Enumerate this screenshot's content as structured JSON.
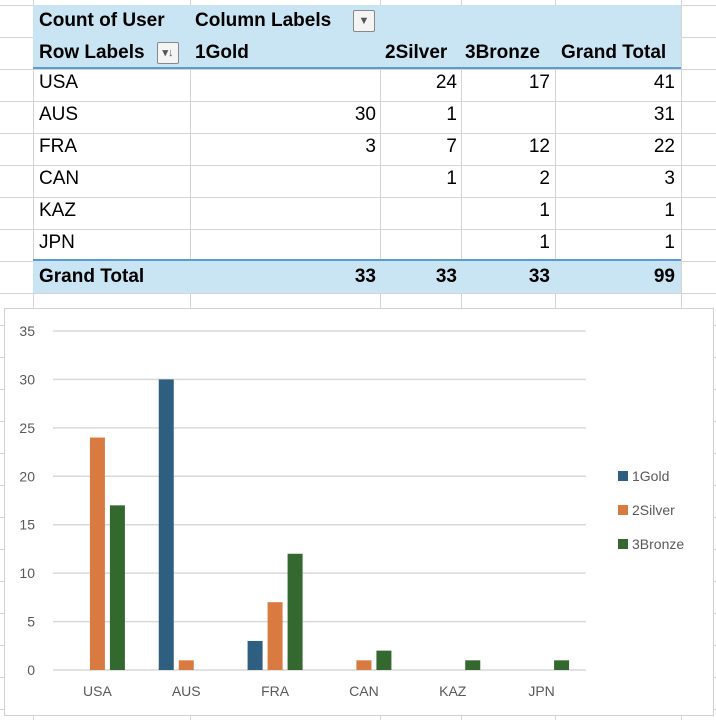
{
  "pivot": {
    "value_label": "Count of User",
    "column_labels": "Column Labels",
    "row_labels": "Row Labels",
    "columns": [
      "1Gold",
      "2Silver",
      "3Bronze",
      "Grand Total"
    ],
    "rows": [
      {
        "label": "USA",
        "values": [
          "",
          "24",
          "17",
          "41"
        ]
      },
      {
        "label": "AUS",
        "values": [
          "30",
          "1",
          "",
          "31"
        ]
      },
      {
        "label": "FRA",
        "values": [
          "3",
          "7",
          "12",
          "22"
        ]
      },
      {
        "label": "CAN",
        "values": [
          "",
          "1",
          "2",
          "3"
        ]
      },
      {
        "label": "KAZ",
        "values": [
          "",
          "",
          "1",
          "1"
        ]
      },
      {
        "label": "JPN",
        "values": [
          "",
          "",
          "1",
          "1"
        ]
      }
    ],
    "grand_total": {
      "label": "Grand Total",
      "values": [
        "33",
        "33",
        "33",
        "99"
      ]
    }
  },
  "chart_data": {
    "type": "bar",
    "categories": [
      "USA",
      "AUS",
      "FRA",
      "CAN",
      "KAZ",
      "JPN"
    ],
    "series": [
      {
        "name": "1Gold",
        "color": "#2e5e80",
        "values": [
          0,
          30,
          3,
          0,
          0,
          0
        ]
      },
      {
        "name": "2Silver",
        "color": "#d97a40",
        "values": [
          24,
          1,
          7,
          1,
          0,
          0
        ]
      },
      {
        "name": "3Bronze",
        "color": "#33692f",
        "values": [
          17,
          0,
          12,
          2,
          1,
          1
        ]
      }
    ],
    "ylim": [
      0,
      35
    ],
    "yticks": [
      "0",
      "5",
      "10",
      "15",
      "20",
      "25",
      "30",
      "35"
    ],
    "grid": true,
    "legend": "right"
  }
}
